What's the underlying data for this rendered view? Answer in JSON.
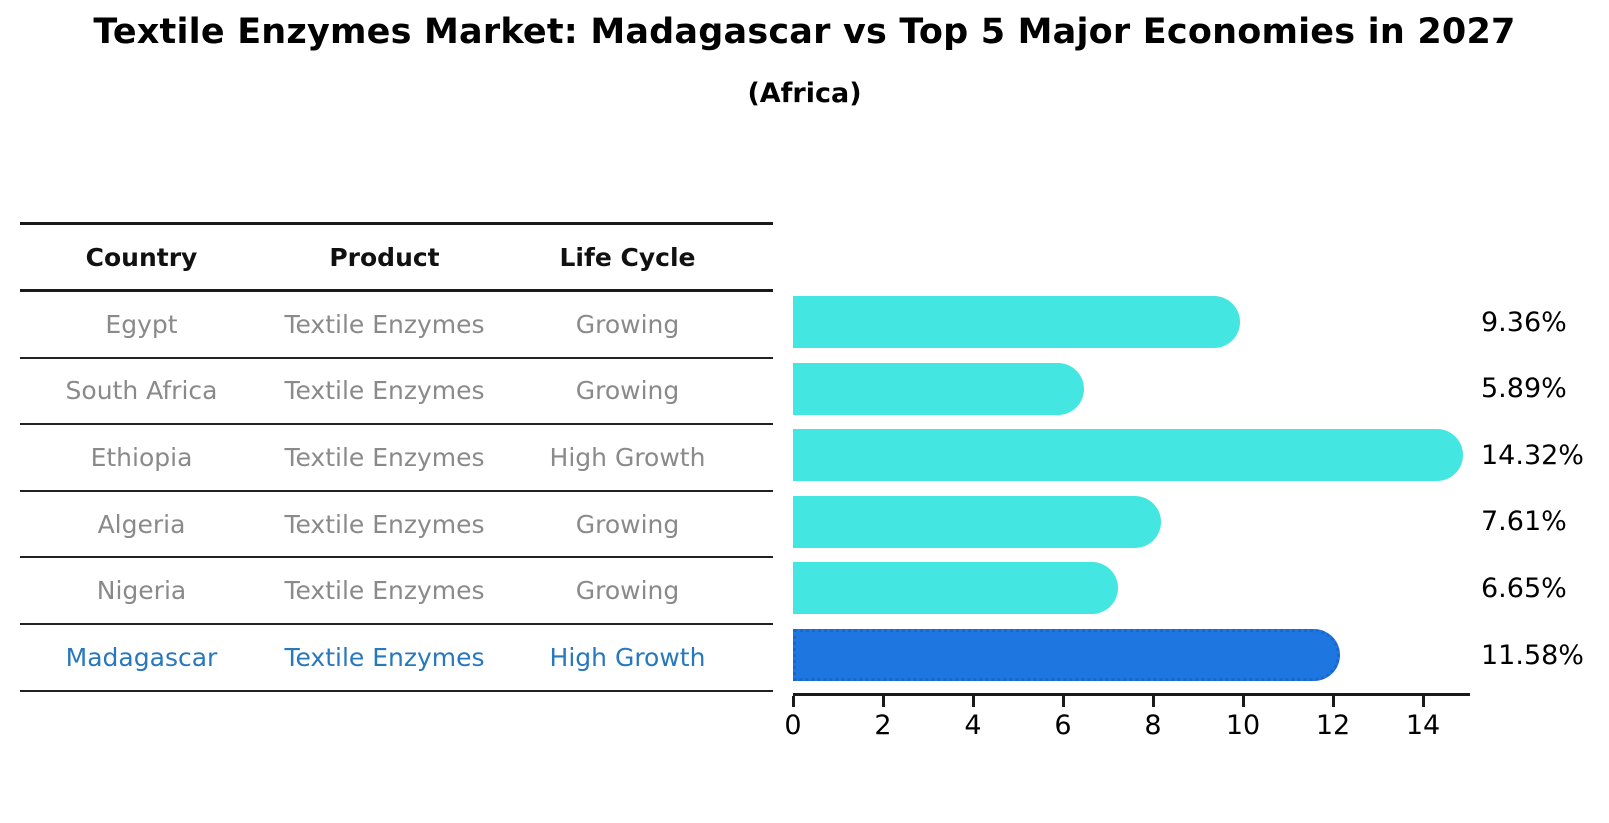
{
  "title": "Textile Enzymes Market: Madagascar vs Top 5 Major Economies in 2027",
  "subtitle": "(Africa)",
  "table": {
    "headers": [
      "Country",
      "Product",
      "Life Cycle"
    ]
  },
  "colors": {
    "bar_default": "#44E6E1",
    "bar_highlight": "#1E76E1",
    "bar_highlight_border": "#1B66CC",
    "highlight_text": "#2878BE",
    "row_text": "#8A8A8A",
    "axis_text": "#000000"
  },
  "chart_data": {
    "type": "bar",
    "orientation": "horizontal",
    "title": "Textile Enzymes Market: Madagascar vs Top 5 Major Economies in 2027",
    "subtitle": "(Africa)",
    "xlabel": "",
    "ylabel": "",
    "xlim": [
      0,
      15.05
    ],
    "x_ticks": [
      0,
      2,
      4,
      6,
      8,
      10,
      12,
      14
    ],
    "grid": false,
    "legend": false,
    "categories": [
      "Egypt",
      "South Africa",
      "Ethiopia",
      "Algeria",
      "Nigeria",
      "Madagascar"
    ],
    "values": [
      9.36,
      5.89,
      14.32,
      7.61,
      6.65,
      11.58
    ],
    "value_labels": [
      "9.36%",
      "5.89%",
      "14.32%",
      "7.61%",
      "6.65%",
      "11.58%"
    ],
    "highlight_category": "Madagascar",
    "rows": [
      {
        "country": "Egypt",
        "product": "Textile Enzymes",
        "life_cycle": "Growing",
        "value": 9.36,
        "label": "9.36%",
        "highlight": false
      },
      {
        "country": "South Africa",
        "product": "Textile Enzymes",
        "life_cycle": "Growing",
        "value": 5.89,
        "label": "5.89%",
        "highlight": false
      },
      {
        "country": "Ethiopia",
        "product": "Textile Enzymes",
        "life_cycle": "High Growth",
        "value": 14.32,
        "label": "14.32%",
        "highlight": false
      },
      {
        "country": "Algeria",
        "product": "Textile Enzymes",
        "life_cycle": "Growing",
        "value": 7.61,
        "label": "7.61%",
        "highlight": false
      },
      {
        "country": "Nigeria",
        "product": "Textile Enzymes",
        "life_cycle": "Growing",
        "value": 6.65,
        "label": "6.65%",
        "highlight": false
      },
      {
        "country": "Madagascar",
        "product": "Textile Enzymes",
        "life_cycle": "High Growth",
        "value": 11.58,
        "label": "11.58%",
        "highlight": true
      }
    ]
  }
}
